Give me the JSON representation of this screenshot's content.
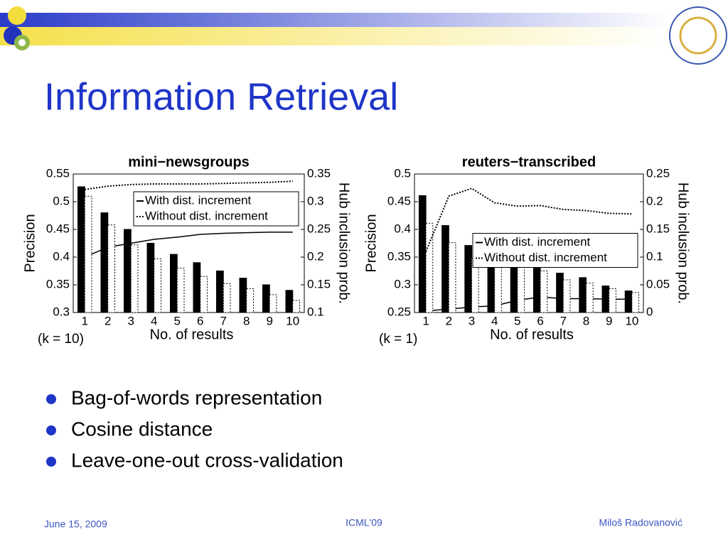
{
  "title": "Information Retrieval",
  "chart_data": [
    {
      "type": "bar",
      "title": "mini−newsgroups",
      "caption": "(k = 10)",
      "x_label": "No. of results",
      "y_label": "Precision",
      "y2_label": "Hub inclusion prob.",
      "categories": [
        "1",
        "2",
        "3",
        "4",
        "5",
        "6",
        "7",
        "8",
        "9",
        "10"
      ],
      "ylim": [
        0.3,
        0.55
      ],
      "yticks": [
        0.3,
        0.35,
        0.4,
        0.45,
        0.5,
        0.55
      ],
      "y2lim": [
        0.1,
        0.35
      ],
      "y2ticks": [
        0.1,
        0.15,
        0.2,
        0.25,
        0.3,
        0.35
      ],
      "legend": "upper right",
      "series": [
        {
          "name": "With dist. increment",
          "color": "#000000",
          "line_style": "solid",
          "values": [
            0.527,
            0.48,
            0.45,
            0.425,
            0.405,
            0.39,
            0.375,
            0.362,
            0.35,
            0.34
          ],
          "y2_values": [
            0.2,
            0.218,
            0.225,
            0.232,
            0.236,
            0.241,
            0.243,
            0.244,
            0.245,
            0.245
          ]
        },
        {
          "name": "Without dist. increment",
          "color": "#000000",
          "line_style": "dotted",
          "values": [
            0.51,
            0.458,
            0.422,
            0.397,
            0.38,
            0.365,
            0.352,
            0.343,
            0.332,
            0.322
          ],
          "y2_values": [
            0.322,
            0.328,
            0.331,
            0.332,
            0.332,
            0.332,
            0.333,
            0.334,
            0.335,
            0.337
          ]
        }
      ]
    },
    {
      "type": "bar",
      "title": "reuters−transcribed",
      "caption": "(k = 1)",
      "x_label": "No. of results",
      "y_label": "Precision",
      "y2_label": "Hub inclusion prob.",
      "categories": [
        "1",
        "2",
        "3",
        "4",
        "5",
        "6",
        "7",
        "8",
        "9",
        "10"
      ],
      "ylim": [
        0.25,
        0.5
      ],
      "yticks": [
        0.25,
        0.3,
        0.35,
        0.4,
        0.45,
        0.5
      ],
      "y2lim": [
        0,
        0.25
      ],
      "y2ticks": [
        0,
        0.05,
        0.1,
        0.15,
        0.2,
        0.25
      ],
      "legend": "center right",
      "series": [
        {
          "name": "With dist. increment",
          "color": "#000000",
          "line_style": "solid",
          "values": [
            0.461,
            0.407,
            0.371,
            0.372,
            0.349,
            0.33,
            0.321,
            0.313,
            0.298,
            0.289
          ],
          "y2_values": [
            0.003,
            0.006,
            0.01,
            0.012,
            0.022,
            0.028,
            0.025,
            0.025,
            0.024,
            0.024
          ]
        },
        {
          "name": "Without dist. increment",
          "color": "#000000",
          "line_style": "dotted",
          "values": [
            0.411,
            0.376,
            0.348,
            0.345,
            0.341,
            0.325,
            0.309,
            0.303,
            0.293,
            0.286
          ],
          "y2_values": [
            0.11,
            0.21,
            0.224,
            0.198,
            0.192,
            0.193,
            0.186,
            0.184,
            0.179,
            0.178
          ]
        }
      ]
    }
  ],
  "bullets": [
    "Bag-of-words representation",
    "Cosine distance",
    "Leave-one-out cross-validation"
  ],
  "footer": {
    "date": "June 15, 2009",
    "venue": "ICML'09",
    "author": "Miloš Radovanović"
  }
}
